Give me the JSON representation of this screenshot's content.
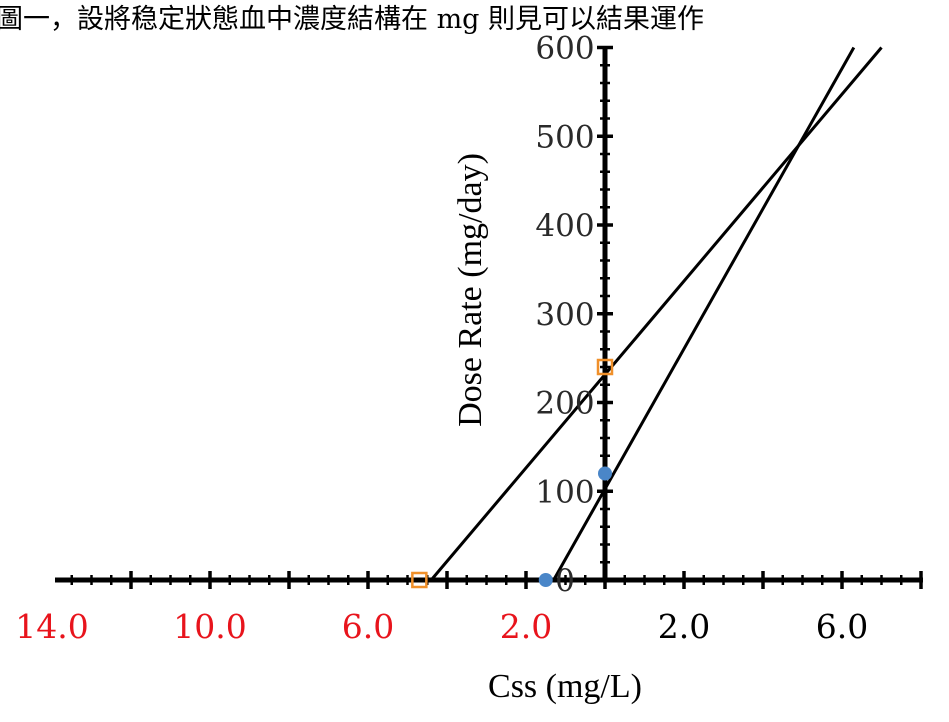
{
  "header_fragment": "圖一，設將稳定狀態血中濃度結構在 mg 則見可以結果運作",
  "chart_data": {
    "type": "scatter",
    "title": "",
    "xlabel": "Css (mg/L)",
    "ylabel": "Dose Rate (mg/day)",
    "xlim": [
      -14.0,
      8.0
    ],
    "ylim": [
      0,
      600
    ],
    "x_tick_labels": [
      {
        "value": -14.0,
        "label": "14.0",
        "color": "#e8141c"
      },
      {
        "value": -10.0,
        "label": "10.0",
        "color": "#e8141c"
      },
      {
        "value": -6.0,
        "label": "6.0",
        "color": "#e8141c"
      },
      {
        "value": -2.0,
        "label": "2.0",
        "color": "#e8141c"
      },
      {
        "value": 2.0,
        "label": "2.0",
        "color": "#000000"
      },
      {
        "value": 6.0,
        "label": "6.0",
        "color": "#000000"
      }
    ],
    "y_tick_labels": [
      {
        "value": 0,
        "label": "0"
      },
      {
        "value": 100,
        "label": "100"
      },
      {
        "value": 200,
        "label": "200"
      },
      {
        "value": 300,
        "label": "300"
      },
      {
        "value": 400,
        "label": "400"
      },
      {
        "value": 500,
        "label": "500"
      },
      {
        "value": 600,
        "label": "600"
      }
    ],
    "series": [
      {
        "marker": "square-outline",
        "color": "#f0902a",
        "points": [
          {
            "x": -4.7,
            "y": 0
          },
          {
            "x": 0,
            "y": 240
          }
        ],
        "line": {
          "from": {
            "x": -4.4,
            "y": 0
          },
          "to": {
            "x": 7.0,
            "y": 600
          }
        }
      },
      {
        "marker": "circle",
        "color": "#4a86c8",
        "points": [
          {
            "x": -1.5,
            "y": 0
          },
          {
            "x": 0,
            "y": 120
          }
        ],
        "line": {
          "from": {
            "x": -1.3,
            "y": 0
          },
          "to": {
            "x": 6.3,
            "y": 600
          }
        }
      }
    ],
    "grid": false,
    "legend": "none"
  }
}
